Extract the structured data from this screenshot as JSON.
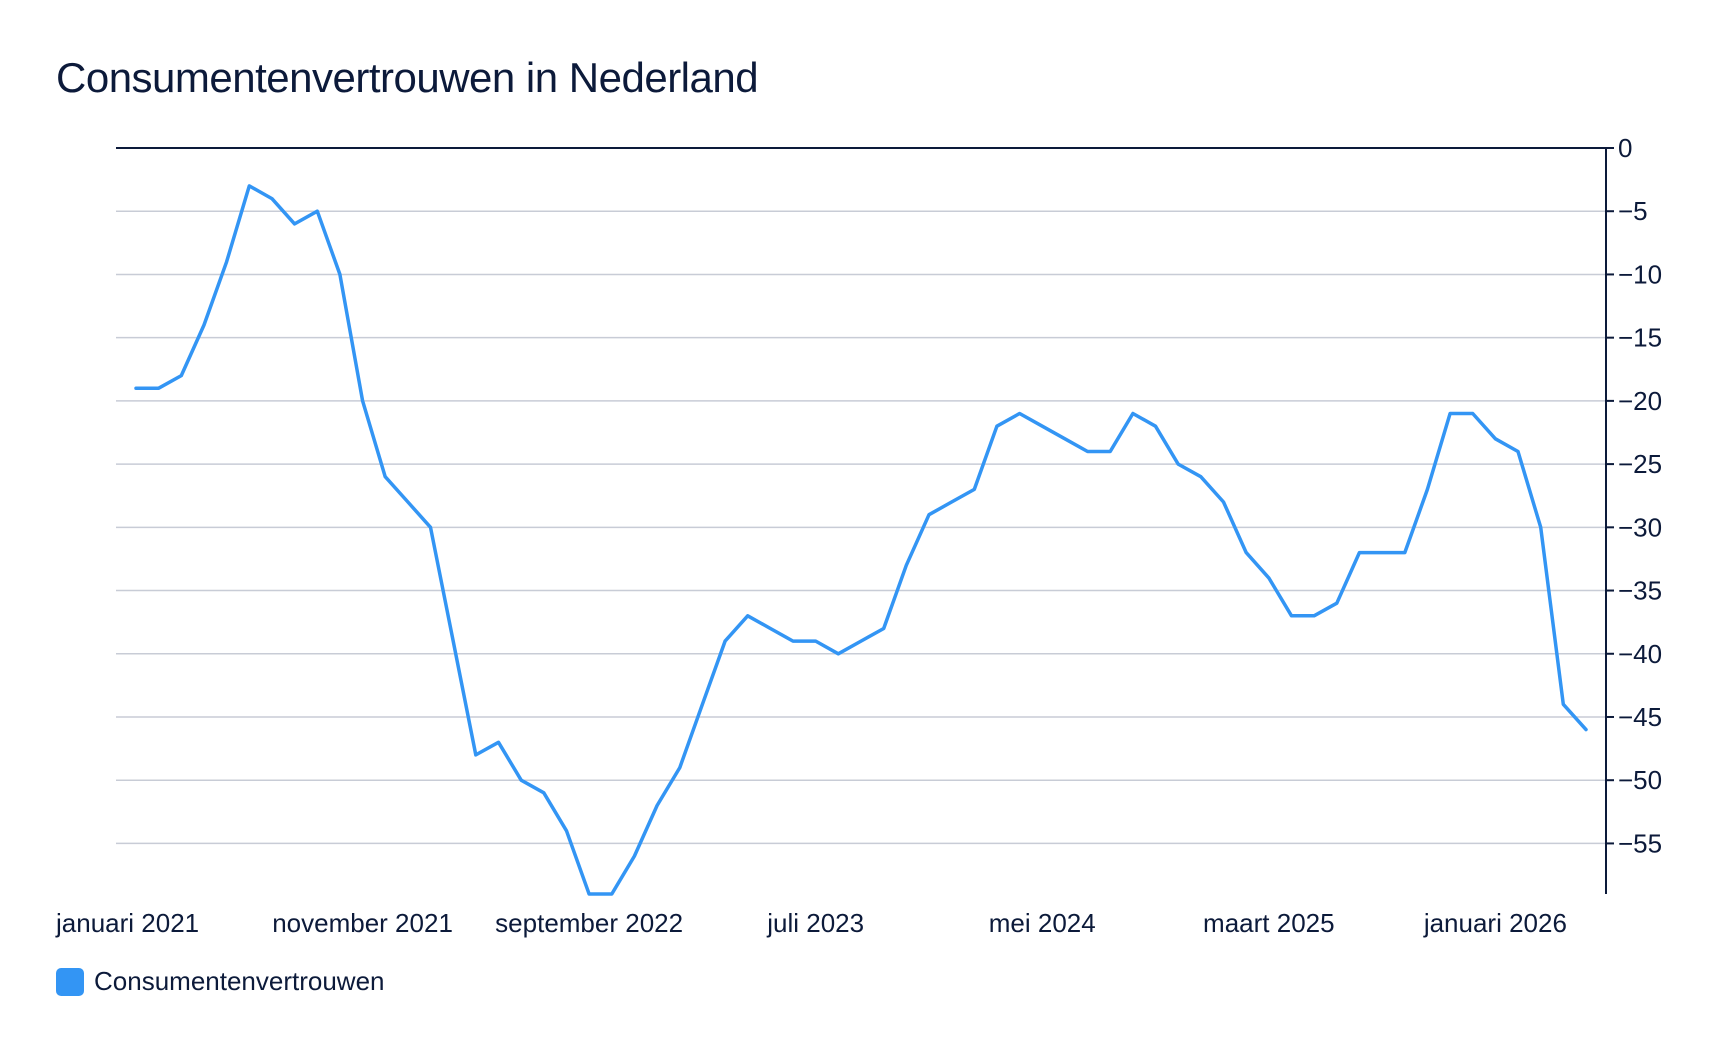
{
  "chart_data": {
    "type": "line",
    "title": "Consumentenvertrouwen in Nederland",
    "xlabel": "",
    "ylabel": "",
    "ylim": [
      -59,
      0
    ],
    "y_ticks": [
      0,
      -5,
      -10,
      -15,
      -20,
      -25,
      -30,
      -35,
      -40,
      -45,
      -50,
      -55
    ],
    "y_tick_labels": [
      "0",
      "−5",
      "−10",
      "−15",
      "−20",
      "−25",
      "−30",
      "−35",
      "−40",
      "−45",
      "−50",
      "−55"
    ],
    "x_tick_labels": [
      {
        "index": 0,
        "label": "januari 2021"
      },
      {
        "index": 10,
        "label": "november 2021"
      },
      {
        "index": 20,
        "label": "september 2022"
      },
      {
        "index": 30,
        "label": "juli 2023"
      },
      {
        "index": 40,
        "label": "mei 2024"
      },
      {
        "index": 50,
        "label": "maart 2025"
      },
      {
        "index": 60,
        "label": "januari 2026"
      }
    ],
    "grid": true,
    "legend_position": "bottom-left",
    "series": [
      {
        "name": "Consumentenvertrouwen",
        "color": "#3395f4",
        "values": [
          -19,
          -19,
          -18,
          -14,
          -9,
          -3,
          -4,
          -6,
          -5,
          -10,
          -20,
          -26,
          -28,
          -30,
          -39,
          -48,
          -47,
          -50,
          -51,
          -54,
          -59,
          -59,
          -56,
          -52,
          -49,
          -44,
          -39,
          -37,
          -38,
          -39,
          -39,
          -40,
          -39,
          -38,
          -33,
          -29,
          -28,
          -27,
          -22,
          -21,
          -22,
          -23,
          -24,
          -24,
          -21,
          -22,
          -25,
          -26,
          -28,
          -32,
          -34,
          -37,
          -37,
          -36,
          -32,
          -32,
          -32,
          -27,
          -21,
          -21,
          -23,
          -24,
          -30,
          -44,
          -46
        ]
      }
    ]
  }
}
